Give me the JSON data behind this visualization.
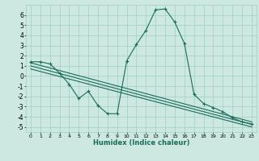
{
  "xlabel": "Humidex (Indice chaleur)",
  "background_color": "#cce8e0",
  "grid_color": "#9ecfc4",
  "line_color": "#1a6b5a",
  "xlim": [
    -0.5,
    23.5
  ],
  "ylim": [
    -5.5,
    7.0
  ],
  "xticks": [
    0,
    1,
    2,
    3,
    4,
    5,
    6,
    7,
    8,
    9,
    10,
    11,
    12,
    13,
    14,
    15,
    16,
    17,
    18,
    19,
    20,
    21,
    22,
    23
  ],
  "yticks": [
    -5,
    -4,
    -3,
    -2,
    -1,
    0,
    1,
    2,
    3,
    4,
    5,
    6
  ],
  "zigzag_x": [
    0,
    1,
    2,
    3,
    4,
    5,
    6,
    7,
    8,
    9,
    10,
    11,
    12,
    13,
    14,
    15,
    16,
    17,
    18,
    19,
    20,
    21,
    22,
    23
  ],
  "zigzag_y": [
    1.4,
    1.4,
    1.2,
    0.3,
    -0.8,
    -2.2,
    -1.5,
    -2.9,
    -3.7,
    -3.7,
    1.5,
    3.1,
    4.5,
    6.5,
    6.6,
    5.3,
    3.2,
    -1.8,
    -2.7,
    -3.1,
    -3.5,
    -4.1,
    -4.5,
    -4.7
  ],
  "line1_x": [
    0,
    23
  ],
  "line1_y": [
    1.3,
    -4.5
  ],
  "line2_x": [
    0,
    23
  ],
  "line2_y": [
    1.0,
    -4.75
  ],
  "line3_x": [
    0,
    23
  ],
  "line3_y": [
    0.7,
    -5.0
  ]
}
